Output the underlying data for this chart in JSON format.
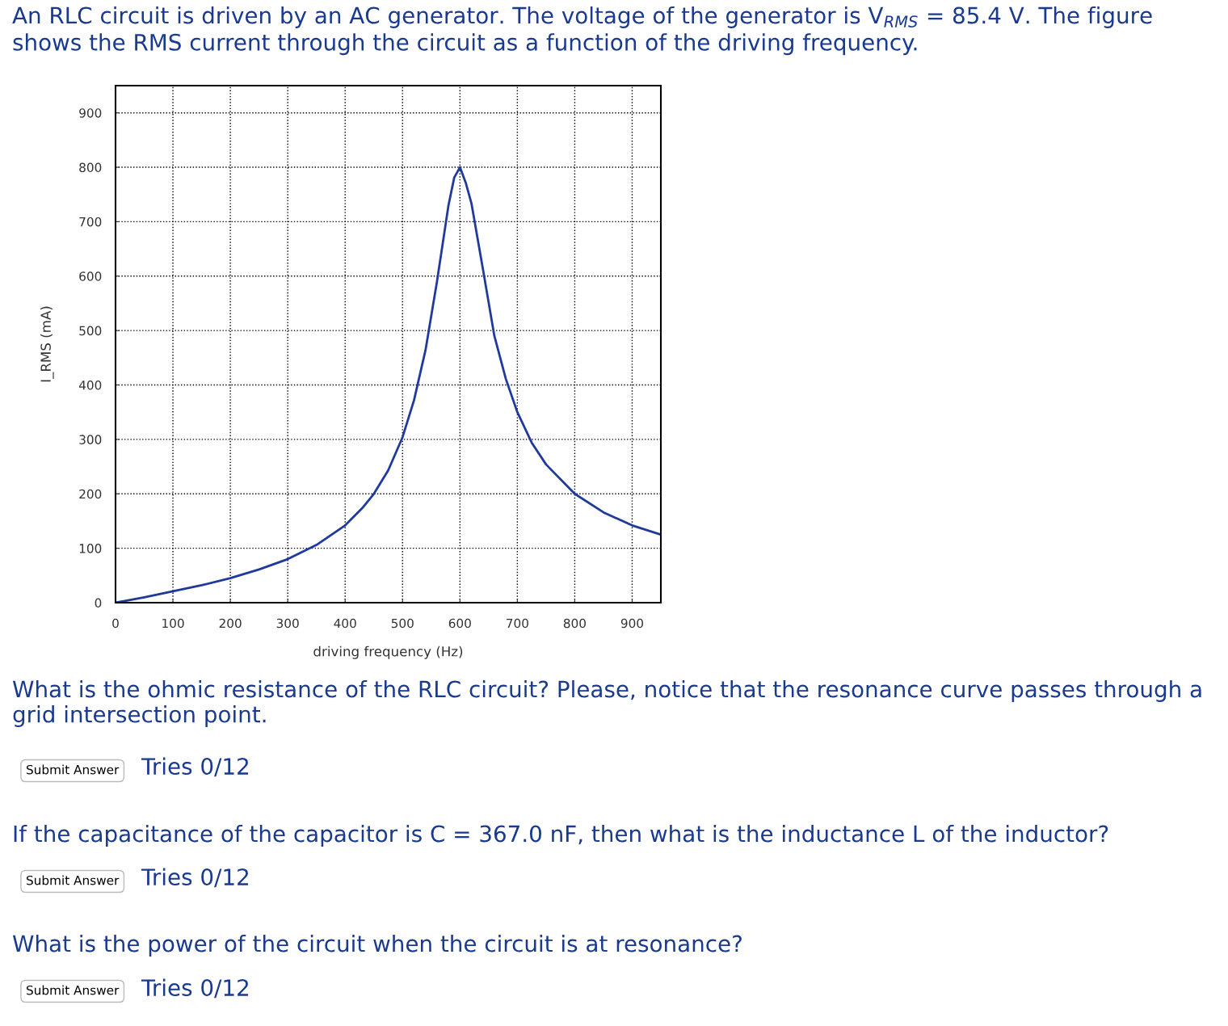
{
  "chart_data": {
    "type": "line",
    "title": "An RLC circuit is driven by an AC generator. The voltage of the generator is V$_{RMS}$ = 85.4 V. The figure shows the RMS current through the circuit as a function of the driving frequency.",
    "xlabel": "driving frequency (Hz)",
    "ylabel": "I_RMS (mA)",
    "series": [
      {
        "color": "#1f3a9a",
        "x": [
          0,
          20,
          50,
          100,
          150,
          200,
          250,
          300,
          350,
          400,
          430,
          450,
          475,
          500,
          520,
          540,
          560,
          580,
          590,
          600,
          610,
          620,
          640,
          660,
          680,
          700,
          725,
          750,
          800,
          850,
          900,
          950
        ],
        "values": [
          0,
          4,
          10,
          21,
          32,
          45,
          61,
          80,
          106,
          142,
          174,
          200,
          243,
          304,
          372,
          464,
          590,
          730,
          781,
          800,
          772,
          734,
          613,
          490,
          411,
          350,
          294,
          254,
          200,
          166,
          142,
          125
        ]
      }
    ],
    "xlim": [
      0,
      950
    ],
    "ylim": [
      0,
      950
    ],
    "xticks": [
      0,
      100,
      200,
      300,
      400,
      500,
      600,
      700,
      800,
      900
    ],
    "yticks": [
      0,
      100,
      200,
      300,
      400,
      500,
      600,
      700,
      800,
      900
    ],
    "grid": true,
    "line_style": "solid",
    "marker": "none",
    "annotations": [
      "What is the ohmic resistance of the RLC circuit? Please, notice that the resonance curve passes through a grid intersection point.",
      "Submit Answer",
      "Tries 0/12",
      "If the capacitance of the capacitor is C = 367.0 nF, then what is the inductance L of the inductor?",
      "Submit Answer",
      "Tries 0/12",
      "What is the power of the circuit when the circuit is at resonance?",
      "Submit Answer",
      "Tries 0/12"
    ]
  }
}
